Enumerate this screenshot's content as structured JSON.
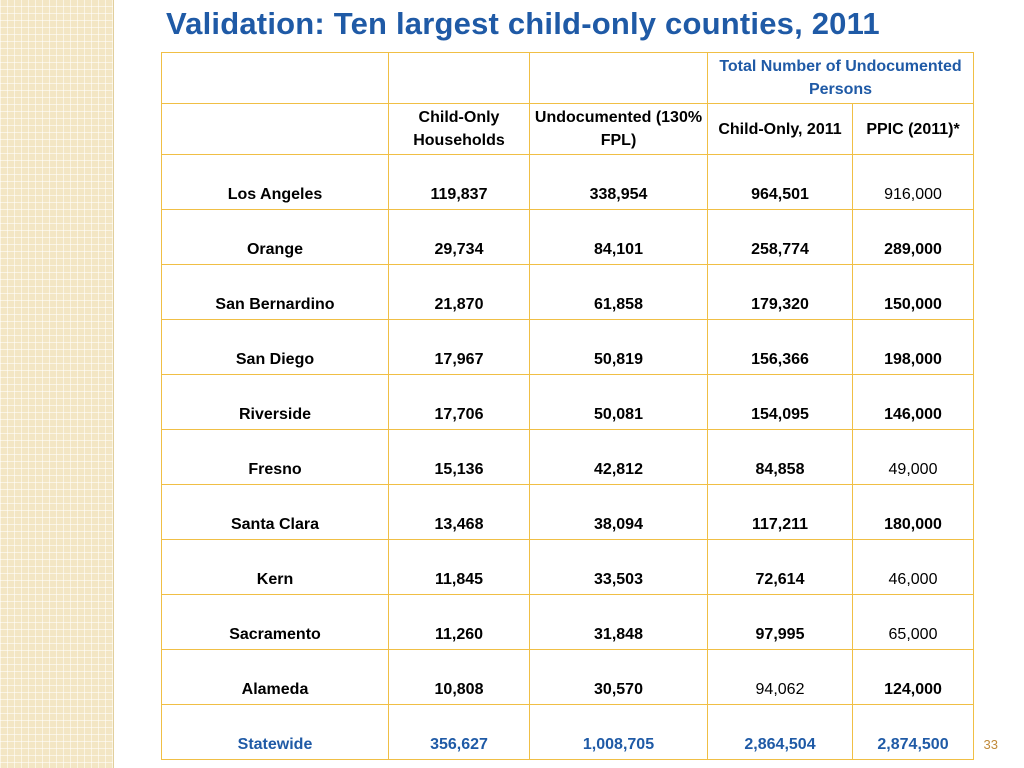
{
  "title": "Validation:  Ten largest child-only counties, 2011",
  "table": {
    "group_header": "Total  Number of Undocumented  Persons",
    "columns": [
      "",
      "Child-Only Households",
      "Undocumented (130% FPL)",
      "Child-Only, 2011",
      "PPIC (2011)*"
    ],
    "rows": [
      {
        "county": "Los Angeles",
        "households": "119,837",
        "undocumented_fpl": "338,954",
        "child_only_2011": "964,501",
        "ppic": "916,000"
      },
      {
        "county": "Orange",
        "households": "29,734",
        "undocumented_fpl": "84,101",
        "child_only_2011": "258,774",
        "ppic": "289,000"
      },
      {
        "county": "San Bernardino",
        "households": "21,870",
        "undocumented_fpl": "61,858",
        "child_only_2011": "179,320",
        "ppic": "150,000"
      },
      {
        "county": "San Diego",
        "households": "17,967",
        "undocumented_fpl": "50,819",
        "child_only_2011": "156,366",
        "ppic": "198,000"
      },
      {
        "county": "Riverside",
        "households": "17,706",
        "undocumented_fpl": "50,081",
        "child_only_2011": "154,095",
        "ppic": "146,000"
      },
      {
        "county": "Fresno",
        "households": "15,136",
        "undocumented_fpl": "42,812",
        "child_only_2011": "84,858",
        "ppic": "49,000"
      },
      {
        "county": "Santa Clara",
        "households": "13,468",
        "undocumented_fpl": "38,094",
        "child_only_2011": "117,211",
        "ppic": "180,000"
      },
      {
        "county": "Kern",
        "households": "11,845",
        "undocumented_fpl": "33,503",
        "child_only_2011": "72,614",
        "ppic": "46,000"
      },
      {
        "county": "Sacramento",
        "households": "11,260",
        "undocumented_fpl": "31,848",
        "child_only_2011": "97,995",
        "ppic": "65,000"
      },
      {
        "county": "Alameda",
        "households": "10,808",
        "undocumented_fpl": "30,570",
        "child_only_2011": "94,062",
        "ppic": "124,000"
      }
    ],
    "total": {
      "county": "Statewide",
      "households": "356,627",
      "undocumented_fpl": "1,008,705",
      "child_only_2011": "2,864,504",
      "ppic": "2,874,500"
    }
  },
  "page_number": "33",
  "colors": {
    "title": "#1f5aa6",
    "border": "#f0bf45",
    "statewide": "#1f5aa6",
    "page_number": "#c08a3a"
  }
}
